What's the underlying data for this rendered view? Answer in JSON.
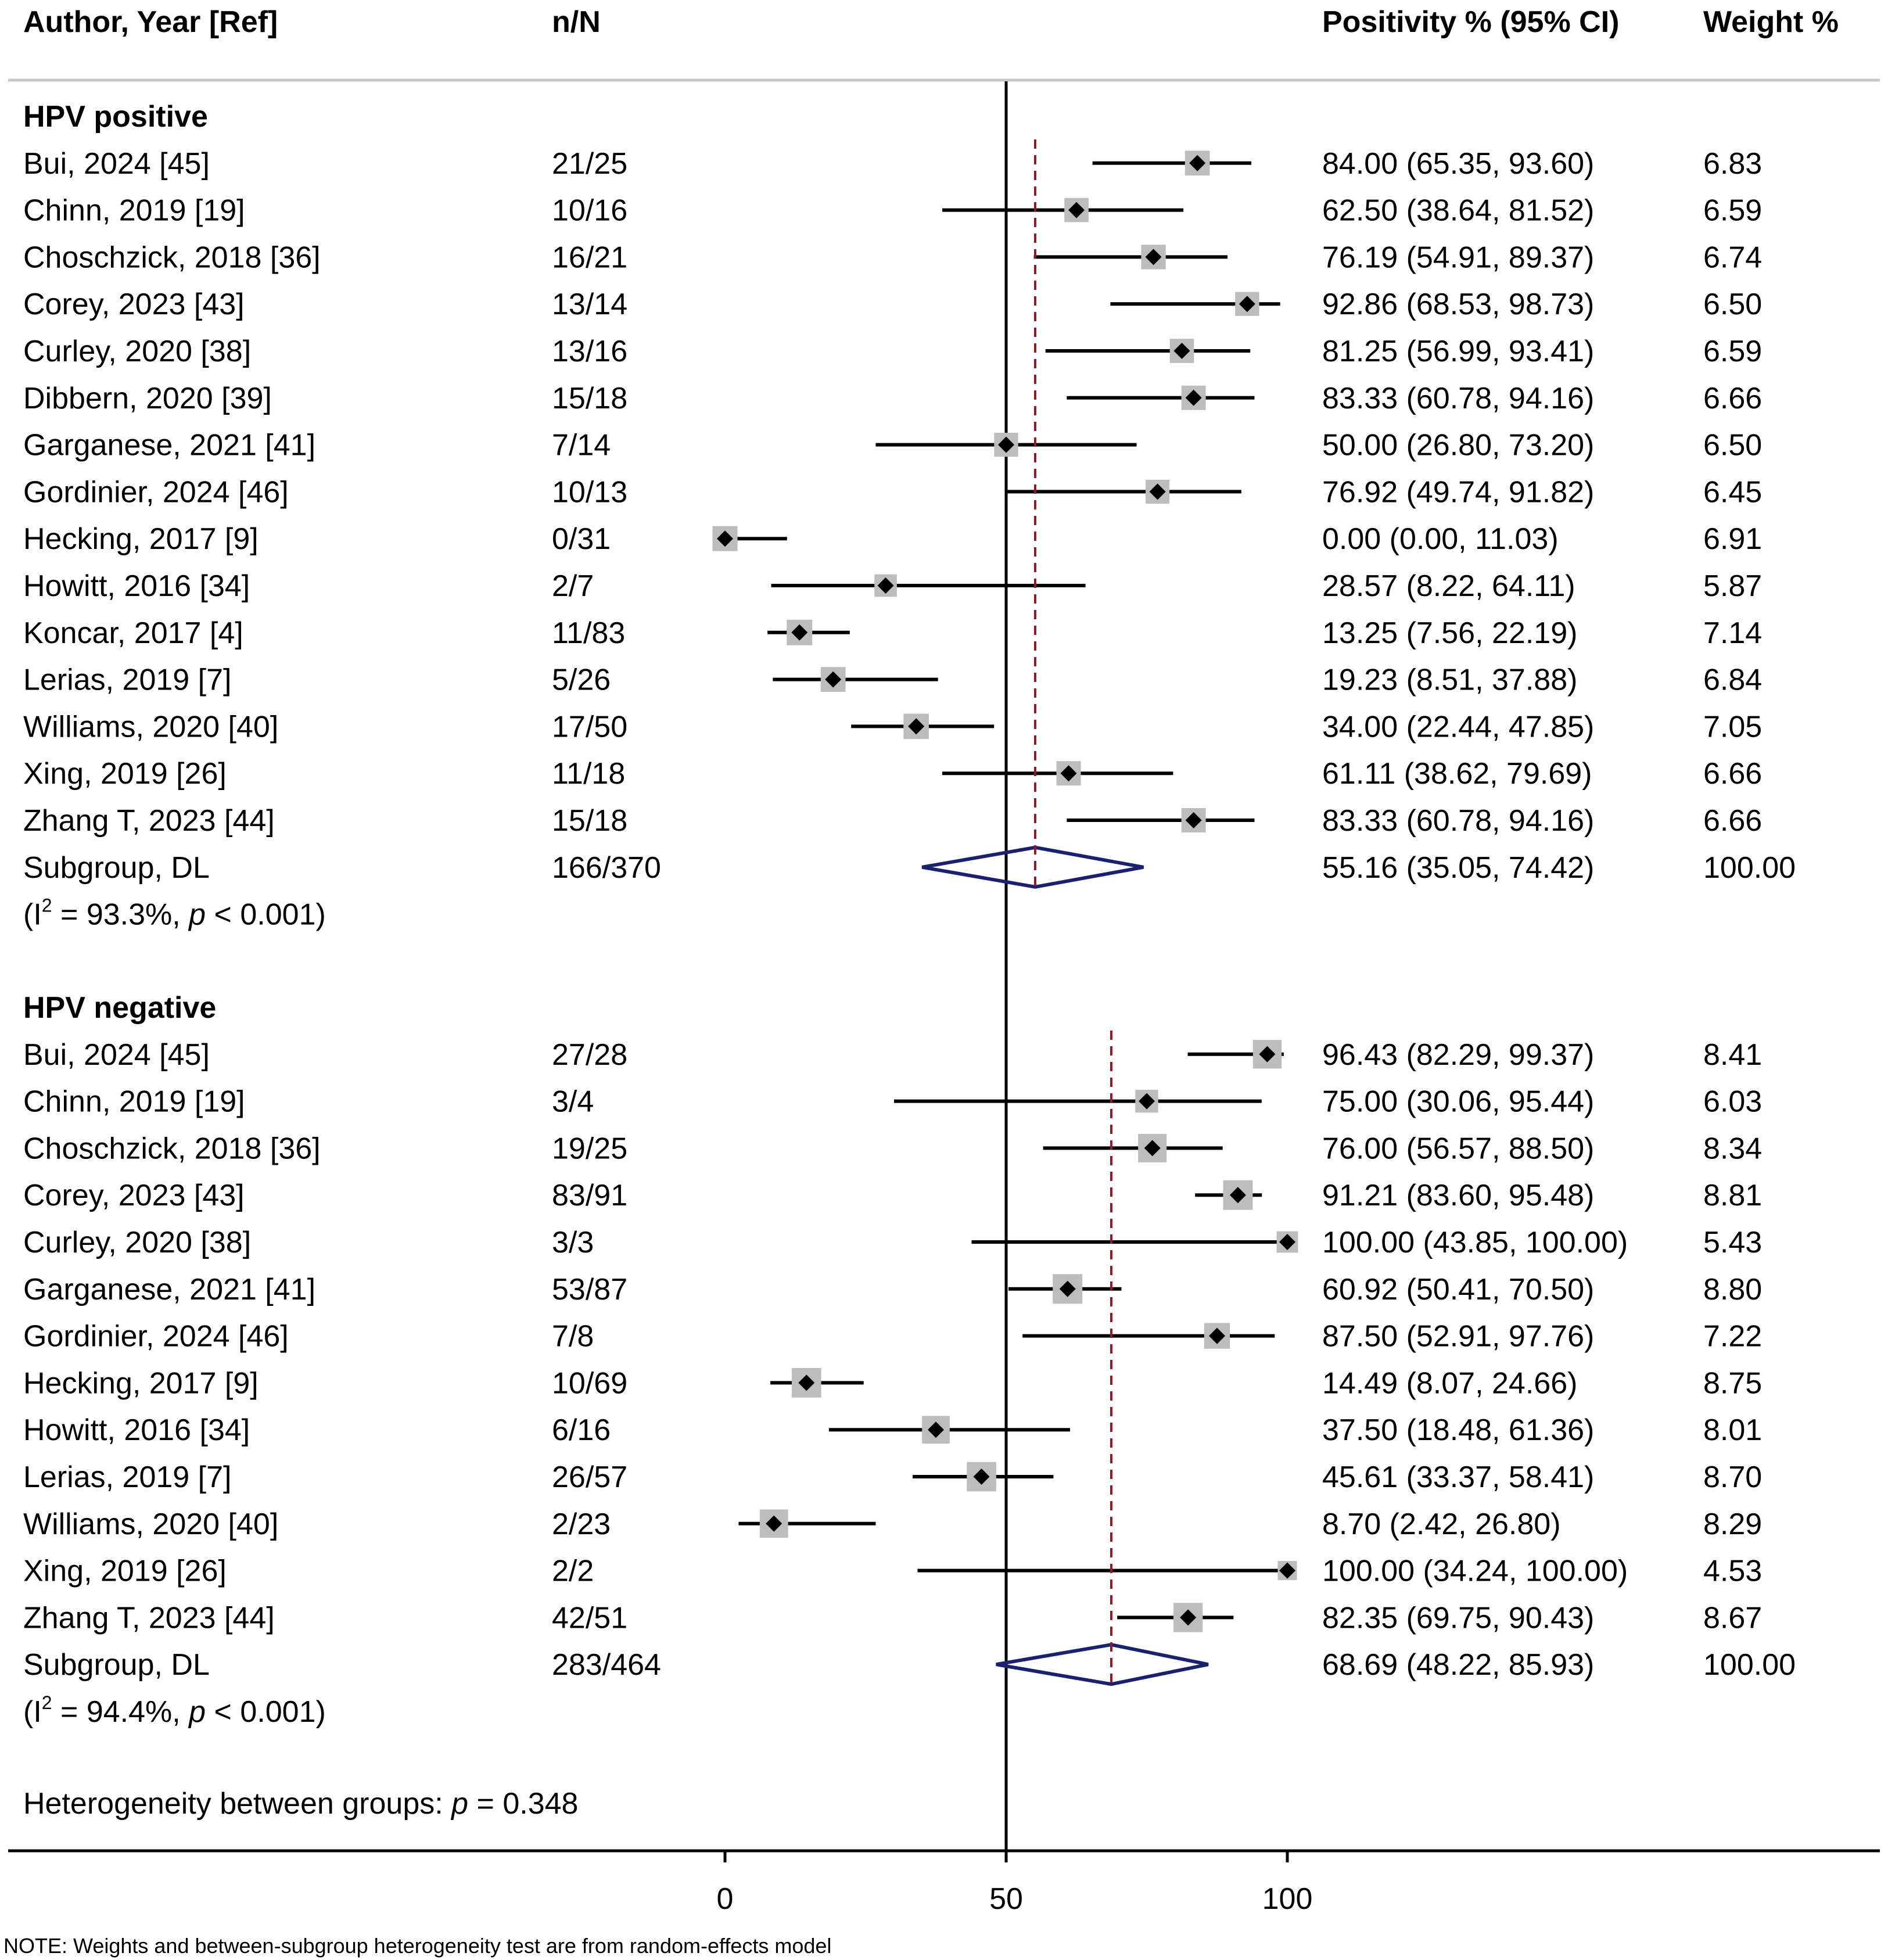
{
  "header": {
    "col_author": "Author, Year [Ref]",
    "col_nN": "n/N",
    "col_est": "Positivity % (95% CI)",
    "col_weight": "Weight %"
  },
  "groups": [
    {
      "title": "HPV positive",
      "rows": [
        {
          "author": "Bui, 2024 [45]",
          "nN": "21/25",
          "est": 84.0,
          "lo": 65.35,
          "hi": 93.6,
          "ci_text": "84.00 (65.35, 93.60)",
          "weight": 6.83,
          "weight_text": "6.83"
        },
        {
          "author": "Chinn, 2019 [19]",
          "nN": "10/16",
          "est": 62.5,
          "lo": 38.64,
          "hi": 81.52,
          "ci_text": "62.50 (38.64, 81.52)",
          "weight": 6.59,
          "weight_text": "6.59"
        },
        {
          "author": "Choschzick, 2018 [36]",
          "nN": "16/21",
          "est": 76.19,
          "lo": 54.91,
          "hi": 89.37,
          "ci_text": "76.19 (54.91, 89.37)",
          "weight": 6.74,
          "weight_text": "6.74"
        },
        {
          "author": "Corey, 2023 [43]",
          "nN": "13/14",
          "est": 92.86,
          "lo": 68.53,
          "hi": 98.73,
          "ci_text": "92.86 (68.53, 98.73)",
          "weight": 6.5,
          "weight_text": "6.50"
        },
        {
          "author": "Curley, 2020 [38]",
          "nN": "13/16",
          "est": 81.25,
          "lo": 56.99,
          "hi": 93.41,
          "ci_text": "81.25 (56.99, 93.41)",
          "weight": 6.59,
          "weight_text": "6.59"
        },
        {
          "author": "Dibbern, 2020 [39]",
          "nN": "15/18",
          "est": 83.33,
          "lo": 60.78,
          "hi": 94.16,
          "ci_text": "83.33 (60.78, 94.16)",
          "weight": 6.66,
          "weight_text": "6.66"
        },
        {
          "author": "Garganese, 2021 [41]",
          "nN": "7/14",
          "est": 50.0,
          "lo": 26.8,
          "hi": 73.2,
          "ci_text": "50.00 (26.80, 73.20)",
          "weight": 6.5,
          "weight_text": "6.50"
        },
        {
          "author": "Gordinier, 2024 [46]",
          "nN": "10/13",
          "est": 76.92,
          "lo": 49.74,
          "hi": 91.82,
          "ci_text": "76.92 (49.74, 91.82)",
          "weight": 6.45,
          "weight_text": "6.45"
        },
        {
          "author": "Hecking, 2017 [9]",
          "nN": "0/31",
          "est": 0.0,
          "lo": 0.0,
          "hi": 11.03,
          "ci_text": "0.00 (0.00, 11.03)",
          "weight": 6.91,
          "weight_text": "6.91"
        },
        {
          "author": "Howitt, 2016 [34]",
          "nN": "2/7",
          "est": 28.57,
          "lo": 8.22,
          "hi": 64.11,
          "ci_text": "28.57 (8.22, 64.11)",
          "weight": 5.87,
          "weight_text": "5.87"
        },
        {
          "author": "Koncar, 2017 [4]",
          "nN": "11/83",
          "est": 13.25,
          "lo": 7.56,
          "hi": 22.19,
          "ci_text": "13.25 (7.56, 22.19)",
          "weight": 7.14,
          "weight_text": "7.14"
        },
        {
          "author": "Lerias, 2019 [7]",
          "nN": "5/26",
          "est": 19.23,
          "lo": 8.51,
          "hi": 37.88,
          "ci_text": "19.23 (8.51, 37.88)",
          "weight": 6.84,
          "weight_text": "6.84"
        },
        {
          "author": "Williams, 2020 [40]",
          "nN": "17/50",
          "est": 34.0,
          "lo": 22.44,
          "hi": 47.85,
          "ci_text": "34.00 (22.44, 47.85)",
          "weight": 7.05,
          "weight_text": "7.05"
        },
        {
          "author": "Xing, 2019 [26]",
          "nN": "11/18",
          "est": 61.11,
          "lo": 38.62,
          "hi": 79.69,
          "ci_text": "61.11 (38.62, 79.69)",
          "weight": 6.66,
          "weight_text": "6.66"
        },
        {
          "author": "Zhang T, 2023 [44]",
          "nN": "15/18",
          "est": 83.33,
          "lo": 60.78,
          "hi": 94.16,
          "ci_text": "83.33 (60.78, 94.16)",
          "weight": 6.66,
          "weight_text": "6.66"
        }
      ],
      "summary": {
        "label": "Subgroup, DL",
        "nN": "166/370",
        "est": 55.16,
        "lo": 35.05,
        "hi": 74.42,
        "ci_text": "55.16 (35.05, 74.42)",
        "weight_text": "100.00"
      },
      "het": {
        "prefix": "(I",
        "sup": "2",
        "mid": " = 93.3%, ",
        "p": "p",
        "suffix": " < 0.001)"
      }
    },
    {
      "title": "HPV negative",
      "rows": [
        {
          "author": "Bui, 2024 [45]",
          "nN": "27/28",
          "est": 96.43,
          "lo": 82.29,
          "hi": 99.37,
          "ci_text": "96.43 (82.29, 99.37)",
          "weight": 8.41,
          "weight_text": "8.41"
        },
        {
          "author": "Chinn, 2019 [19]",
          "nN": "3/4",
          "est": 75.0,
          "lo": 30.06,
          "hi": 95.44,
          "ci_text": "75.00 (30.06, 95.44)",
          "weight": 6.03,
          "weight_text": "6.03"
        },
        {
          "author": "Choschzick, 2018 [36]",
          "nN": "19/25",
          "est": 76.0,
          "lo": 56.57,
          "hi": 88.5,
          "ci_text": "76.00 (56.57, 88.50)",
          "weight": 8.34,
          "weight_text": "8.34"
        },
        {
          "author": "Corey, 2023 [43]",
          "nN": "83/91",
          "est": 91.21,
          "lo": 83.6,
          "hi": 95.48,
          "ci_text": "91.21 (83.60, 95.48)",
          "weight": 8.81,
          "weight_text": "8.81"
        },
        {
          "author": "Curley, 2020 [38]",
          "nN": "3/3",
          "est": 100.0,
          "lo": 43.85,
          "hi": 100.0,
          "ci_text": "100.00 (43.85, 100.00)",
          "weight": 5.43,
          "weight_text": "5.43"
        },
        {
          "author": "Garganese, 2021 [41]",
          "nN": "53/87",
          "est": 60.92,
          "lo": 50.41,
          "hi": 70.5,
          "ci_text": "60.92 (50.41, 70.50)",
          "weight": 8.8,
          "weight_text": "8.80"
        },
        {
          "author": "Gordinier, 2024 [46]",
          "nN": "7/8",
          "est": 87.5,
          "lo": 52.91,
          "hi": 97.76,
          "ci_text": "87.50 (52.91, 97.76)",
          "weight": 7.22,
          "weight_text": "7.22"
        },
        {
          "author": "Hecking, 2017 [9]",
          "nN": "10/69",
          "est": 14.49,
          "lo": 8.07,
          "hi": 24.66,
          "ci_text": "14.49 (8.07, 24.66)",
          "weight": 8.75,
          "weight_text": "8.75"
        },
        {
          "author": "Howitt, 2016 [34]",
          "nN": "6/16",
          "est": 37.5,
          "lo": 18.48,
          "hi": 61.36,
          "ci_text": "37.50 (18.48, 61.36)",
          "weight": 8.01,
          "weight_text": "8.01"
        },
        {
          "author": "Lerias, 2019 [7]",
          "nN": "26/57",
          "est": 45.61,
          "lo": 33.37,
          "hi": 58.41,
          "ci_text": "45.61 (33.37, 58.41)",
          "weight": 8.7,
          "weight_text": "8.70"
        },
        {
          "author": "Williams, 2020 [40]",
          "nN": "2/23",
          "est": 8.7,
          "lo": 2.42,
          "hi": 26.8,
          "ci_text": "8.70 (2.42, 26.80)",
          "weight": 8.29,
          "weight_text": "8.29"
        },
        {
          "author": "Xing, 2019 [26]",
          "nN": "2/2",
          "est": 100.0,
          "lo": 34.24,
          "hi": 100.0,
          "ci_text": "100.00 (34.24, 100.00)",
          "weight": 4.53,
          "weight_text": "4.53"
        },
        {
          "author": "Zhang T, 2023 [44]",
          "nN": "42/51",
          "est": 82.35,
          "lo": 69.75,
          "hi": 90.43,
          "ci_text": "82.35 (69.75, 90.43)",
          "weight": 8.67,
          "weight_text": "8.67"
        }
      ],
      "summary": {
        "label": "Subgroup, DL",
        "nN": "283/464",
        "est": 68.69,
        "lo": 48.22,
        "hi": 85.93,
        "ci_text": "68.69 (48.22, 85.93)",
        "weight_text": "100.00"
      },
      "het": {
        "prefix": "(I",
        "sup": "2",
        "mid": " = 94.4%, ",
        "p": "p",
        "suffix": " < 0.001)"
      }
    }
  ],
  "between": {
    "text": "Heterogeneity between groups: ",
    "p": "p",
    "value": " = 0.348"
  },
  "axis": {
    "null_value": 50,
    "range": [
      0,
      100
    ],
    "ticks": [
      0,
      50,
      100
    ],
    "tick_labels": [
      "0",
      "50",
      "100"
    ]
  },
  "note": "NOTE: Weights and between-subgroup heterogeneity test are from random-effects model",
  "colors": {
    "text": "#000000",
    "rule": "#c8c8c8",
    "box": "#bdbdbd",
    "diamond": "#1a2270",
    "ref_line": "#8b1a2b"
  },
  "chart_data": {
    "type": "forest",
    "x_label": "Positivity %",
    "xlim": [
      0,
      100
    ],
    "null_line": 50,
    "series": [
      {
        "name": "HPV positive",
        "pooled": 55.16,
        "ci": [
          35.05,
          74.42
        ],
        "I2": "93.3%"
      },
      {
        "name": "HPV negative",
        "pooled": 68.69,
        "ci": [
          48.22,
          85.93
        ],
        "I2": "94.4%"
      }
    ]
  }
}
